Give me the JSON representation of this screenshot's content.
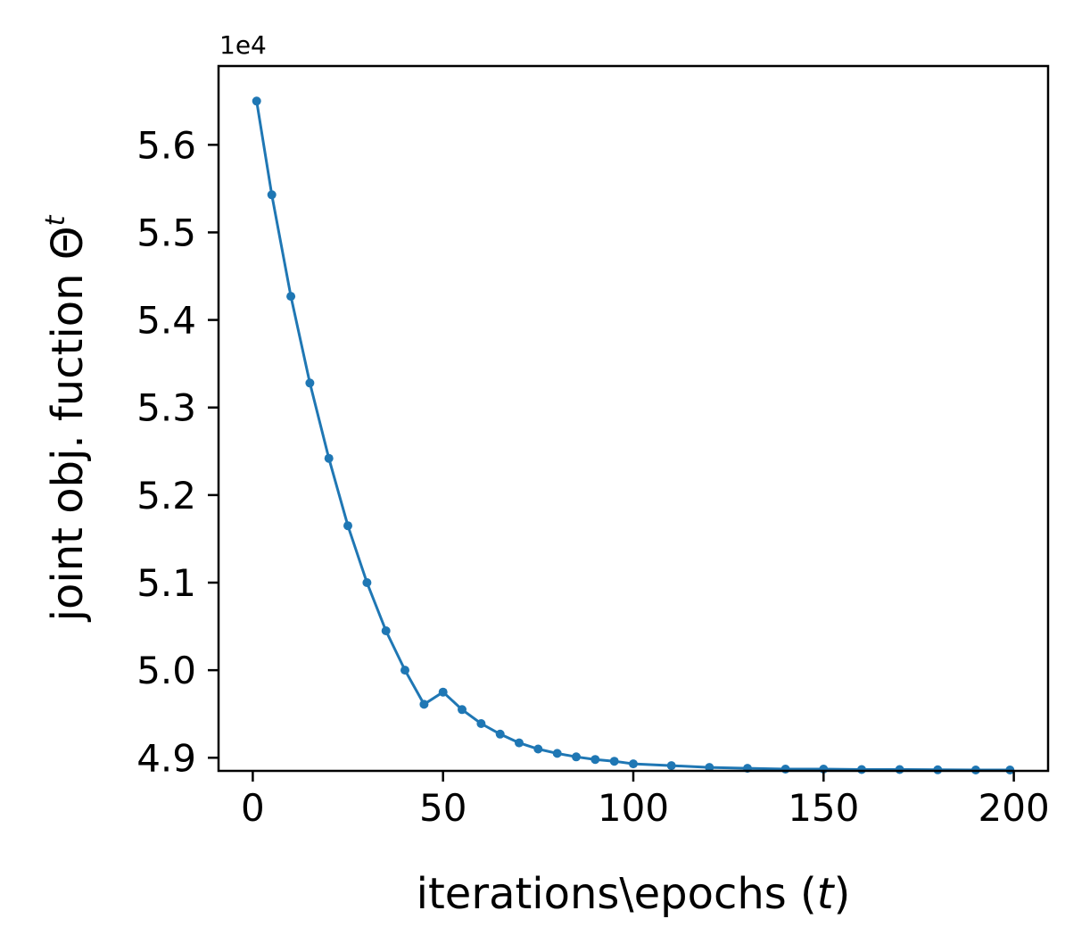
{
  "chart_data": {
    "type": "line",
    "title": "",
    "xlabel": "iterations\\epochs (",
    "xlabel_var": "t",
    "xlabel_close": ")",
    "ylabel": "joint obj. fuction Θ",
    "ylabel_sup": "t",
    "y_offset_label": "1e4",
    "xlim": [
      -9,
      209
    ],
    "ylim": [
      48850,
      56900
    ],
    "xticks": [
      0,
      50,
      100,
      150,
      200
    ],
    "xtick_labels": [
      "0",
      "50",
      "100",
      "150",
      "200"
    ],
    "yticks": [
      49000,
      50000,
      51000,
      52000,
      53000,
      54000,
      55000,
      56000
    ],
    "ytick_labels": [
      "4.9",
      "5.0",
      "5.1",
      "5.2",
      "5.3",
      "5.4",
      "5.5",
      "5.6"
    ],
    "grid": false,
    "series": [
      {
        "color": "#1f77b4",
        "marker": "circle",
        "x": [
          1,
          5,
          10,
          15,
          20,
          25,
          30,
          35,
          40,
          45,
          50,
          55,
          60,
          65,
          70,
          75,
          80,
          85,
          90,
          95,
          100,
          110,
          120,
          130,
          140,
          150,
          160,
          170,
          180,
          190,
          199
        ],
        "y": [
          56500,
          55430,
          54270,
          53280,
          52420,
          51650,
          51000,
          50450,
          50000,
          49610,
          49750,
          49550,
          49390,
          49270,
          49170,
          49100,
          49050,
          49010,
          48980,
          48960,
          48930,
          48910,
          48890,
          48880,
          48870,
          48870,
          48865,
          48865,
          48862,
          48860,
          48860
        ]
      }
    ]
  }
}
